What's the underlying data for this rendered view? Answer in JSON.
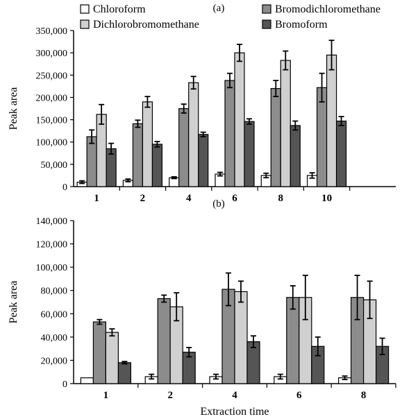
{
  "legend": [
    {
      "name": "Chloroform",
      "color": "#ffffff"
    },
    {
      "name": "Bromodichloromethane",
      "color": "#8c8c8c"
    },
    {
      "name": "Dichlorobromomethane",
      "color": "#d0d0d0"
    },
    {
      "name": "Bromoform",
      "color": "#555555"
    }
  ],
  "chart_data": [
    {
      "type": "bar",
      "panel_label": "(a)",
      "title": "",
      "xlabel": "",
      "ylabel": "Peak area",
      "ylim": [
        0,
        350000
      ],
      "yticks": [
        0,
        50000,
        100000,
        150000,
        200000,
        250000,
        300000,
        350000
      ],
      "ytick_labels": [
        "0",
        "50,000",
        "100,000",
        "150,000",
        "200,000",
        "250,000",
        "300,000",
        "350,000"
      ],
      "categories": [
        "1",
        "2",
        "4",
        "6",
        "8",
        "10"
      ],
      "series": [
        {
          "name": "Chloroform",
          "color": "#ffffff",
          "values": [
            10000,
            14000,
            20000,
            28000,
            25000,
            25000
          ],
          "errors": [
            3000,
            3000,
            2000,
            4000,
            5000,
            6000
          ]
        },
        {
          "name": "Bromodichloromethane",
          "color": "#8c8c8c",
          "values": [
            112000,
            141000,
            175000,
            238000,
            220000,
            222000
          ],
          "errors": [
            15000,
            8000,
            10000,
            16000,
            18000,
            32000
          ]
        },
        {
          "name": "Dichlorobromomethane",
          "color": "#d0d0d0",
          "values": [
            162000,
            190000,
            233000,
            300000,
            283000,
            295000
          ],
          "errors": [
            22000,
            12000,
            14000,
            19000,
            21000,
            33000
          ]
        },
        {
          "name": "Bromoform",
          "color": "#555555",
          "values": [
            85000,
            95000,
            117000,
            146000,
            137000,
            147000
          ],
          "errors": [
            12000,
            6000,
            5000,
            6000,
            10000,
            10000
          ]
        }
      ]
    },
    {
      "type": "bar",
      "panel_label": "(b)",
      "title": "",
      "xlabel": "Extraction time",
      "ylabel": "Peak area",
      "ylim": [
        0,
        140000
      ],
      "yticks": [
        0,
        20000,
        40000,
        60000,
        80000,
        100000,
        120000,
        140000
      ],
      "ytick_labels": [
        "0",
        "20,000",
        "40,000",
        "60,000",
        "80,000",
        "100,000",
        "120,000",
        "140,000"
      ],
      "categories": [
        "1",
        "2",
        "4",
        "6",
        "8"
      ],
      "series": [
        {
          "name": "Chloroform",
          "color": "#ffffff",
          "values": [
            5000,
            6000,
            6000,
            6000,
            5000
          ],
          "errors": [
            0,
            2000,
            2000,
            2000,
            1500
          ]
        },
        {
          "name": "Bromodichloromethane",
          "color": "#8c8c8c",
          "values": [
            53000,
            73000,
            81000,
            74000,
            74000
          ],
          "errors": [
            2000,
            3000,
            14000,
            10000,
            19000
          ]
        },
        {
          "name": "Dichlorobromomethane",
          "color": "#d0d0d0",
          "values": [
            44000,
            66000,
            79000,
            74000,
            72000
          ],
          "errors": [
            3000,
            12000,
            9000,
            19000,
            16000
          ]
        },
        {
          "name": "Bromoform",
          "color": "#555555",
          "values": [
            18000,
            27000,
            36000,
            32000,
            32000
          ],
          "errors": [
            1000,
            4000,
            5000,
            8000,
            7000
          ]
        }
      ]
    }
  ]
}
